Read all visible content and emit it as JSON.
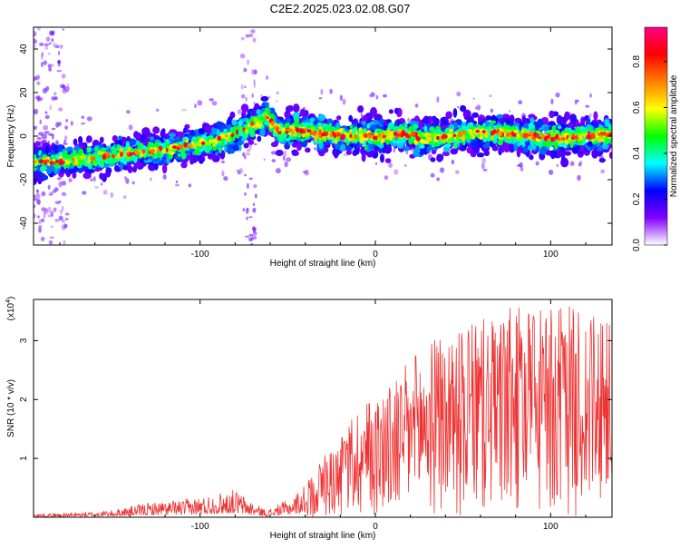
{
  "figure": {
    "title": "C2E2.2025.023.02.08.G07"
  },
  "chart_data": [
    {
      "type": "heatmap",
      "xlabel": "Height of straight line (km)",
      "ylabel": "Frequency (Hz)",
      "xlim": [
        -195,
        135
      ],
      "ylim": [
        -50,
        50
      ],
      "xticks": [
        -100,
        0,
        100
      ],
      "xtick_labels": [
        "-100",
        "0",
        "100"
      ],
      "yticks": [
        -40,
        -20,
        0,
        20,
        40
      ],
      "ytick_labels": [
        "-40",
        "-20",
        "0",
        "20",
        "40"
      ],
      "grid": false,
      "ridge": {
        "description": "dominant frequency vs height",
        "x": [
          -195,
          -170,
          -150,
          -130,
          -110,
          -90,
          -80,
          -70,
          -62,
          -55,
          -45,
          -30,
          -15,
          0,
          15,
          30,
          45,
          60,
          75,
          90,
          105,
          120,
          135
        ],
        "y": [
          -12,
          -11,
          -9,
          -7,
          -5,
          -2,
          1,
          5,
          9,
          2,
          3,
          1,
          0,
          0,
          1,
          -1,
          0,
          2,
          1,
          0,
          -1,
          0,
          1
        ]
      },
      "colorbar": {
        "label": "Normalized spectral amplitude",
        "range": [
          0.0,
          0.95
        ],
        "ticks": [
          0.0,
          0.2,
          0.4,
          0.6,
          0.8
        ],
        "tick_labels": [
          "0.0",
          "0.2",
          "0.4",
          "0.6",
          "0.8"
        ],
        "colormap": [
          "#ffffff",
          "#8000ff",
          "#0000ff",
          "#00ffff",
          "#00ff00",
          "#ffff00",
          "#ff8000",
          "#ff0000",
          "#ff0080"
        ]
      }
    },
    {
      "type": "line",
      "xlabel": "Height of straight line (km)",
      "ylabel": "SNR (10 * v/v)",
      "scale_label": "(x10",
      "scale_exponent": "4",
      "xlim": [
        -195,
        135
      ],
      "ylim": [
        0,
        3.7
      ],
      "xticks": [
        -100,
        0,
        100
      ],
      "xtick_labels": [
        "-100",
        "0",
        "100"
      ],
      "yticks": [
        1,
        2,
        3
      ],
      "ytick_labels": [
        "1",
        "2",
        "3"
      ],
      "grid": false,
      "series": [
        {
          "name": "SNR",
          "color": "#ee3333",
          "envelope_x": [
            -195,
            -170,
            -150,
            -130,
            -110,
            -95,
            -80,
            -72,
            -62,
            -50,
            -40,
            -30,
            -20,
            -10,
            0,
            10,
            20,
            30,
            40,
            50,
            60,
            70,
            80,
            90,
            100,
            110,
            120,
            130,
            135
          ],
          "envelope_y": [
            0.06,
            0.08,
            0.12,
            0.25,
            0.3,
            0.38,
            0.48,
            0.3,
            0.12,
            0.3,
            0.55,
            1.05,
            1.3,
            1.9,
            2.1,
            2.3,
            2.7,
            3.0,
            3.1,
            3.2,
            3.35,
            3.45,
            3.6,
            3.5,
            3.55,
            3.6,
            3.5,
            3.35,
            3.3
          ]
        }
      ]
    }
  ]
}
